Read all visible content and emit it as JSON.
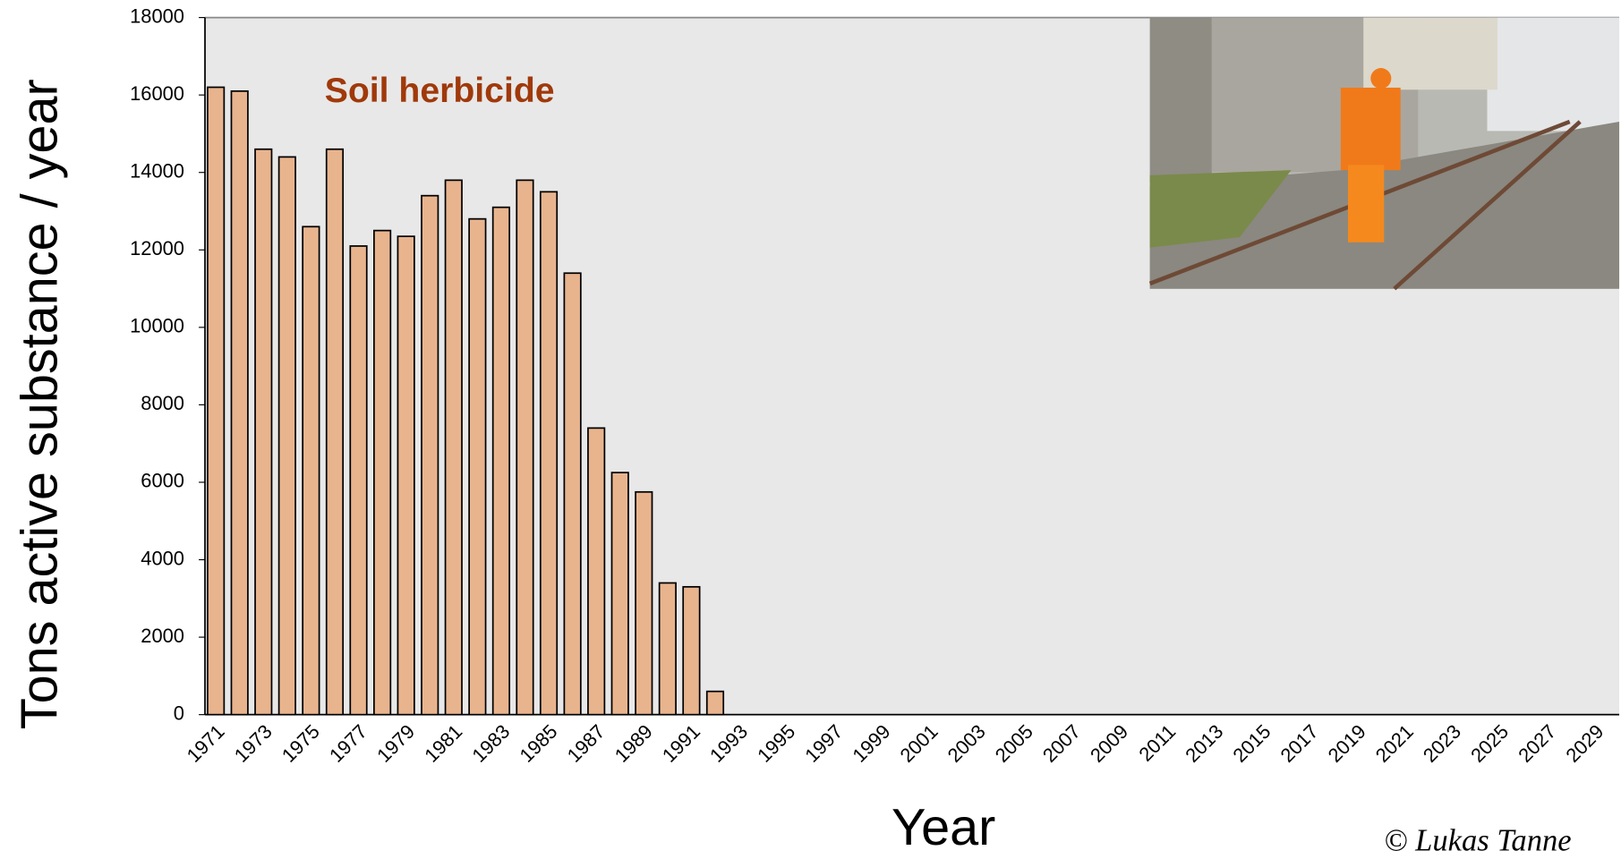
{
  "chart_data": {
    "type": "bar",
    "title": "Soil herbicide",
    "x_label": "Year",
    "y_label": "Tons active substance / year",
    "credit": "© Lukas Tanne",
    "categories": [
      "1971",
      null,
      "1973",
      null,
      "1975",
      null,
      "1977",
      null,
      "1979",
      null,
      "1981",
      null,
      "1983",
      null,
      "1985",
      null,
      "1987",
      null,
      "1989",
      null,
      "1991",
      null,
      "1993",
      null,
      "1995",
      null,
      "1997",
      null,
      "1999",
      null,
      "2001",
      null,
      "2003",
      null,
      "2005",
      null,
      "2007",
      null,
      "2009",
      null,
      "2011",
      null,
      "2013",
      null,
      "2015",
      null,
      "2017",
      null,
      "2019",
      null,
      "2021",
      null,
      "2023",
      null,
      "2025",
      null,
      "2027",
      null,
      "2029"
    ],
    "values": [
      16200,
      16100,
      14600,
      14400,
      12600,
      14600,
      12100,
      12500,
      12350,
      13400,
      13800,
      12800,
      13100,
      13800,
      13500,
      11400,
      7400,
      6250,
      5750,
      3400,
      3300,
      600,
      null,
      null,
      null,
      null,
      null,
      null,
      null,
      null,
      null,
      null,
      null,
      null,
      null,
      null,
      null,
      null,
      null,
      null,
      null,
      null,
      null,
      null,
      null,
      null,
      null,
      null,
      null,
      null,
      null,
      null,
      null,
      null,
      null,
      null,
      null,
      null,
      null
    ],
    "color": "#e8b48e",
    "ylim": [
      0,
      18000
    ],
    "yticks": [
      0,
      2000,
      4000,
      6000,
      8000,
      10000,
      12000,
      14000,
      16000,
      18000
    ]
  }
}
